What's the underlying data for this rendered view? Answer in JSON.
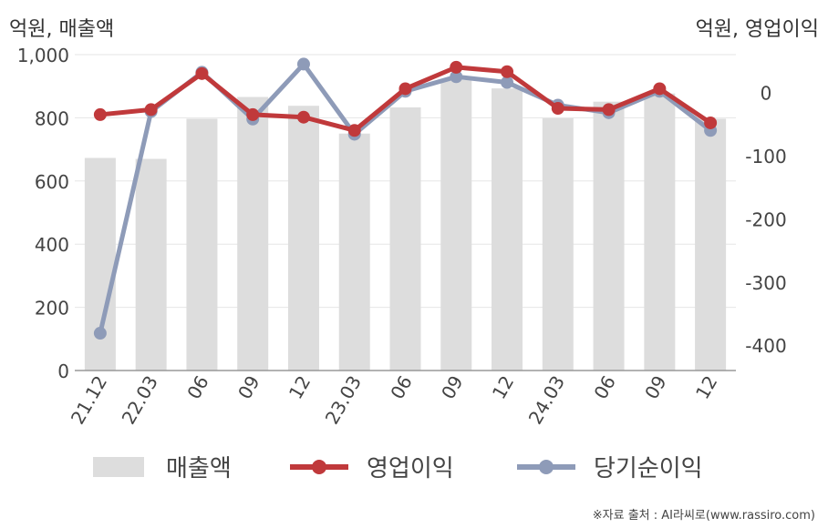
{
  "chart_data": {
    "type": "bar+line",
    "left_axis_label": "억원, 매출액",
    "right_axis_label": "억원, 영업이익",
    "categories": [
      "21.12",
      "22.03",
      "06",
      "09",
      "12",
      "23.03",
      "06",
      "09",
      "12",
      "24.03",
      "06",
      "09",
      "12"
    ],
    "series": [
      {
        "name": "매출액",
        "type": "bar",
        "axis": "left",
        "color": "#dddddd",
        "values": [
          673,
          670,
          797,
          866,
          838,
          750,
          833,
          920,
          893,
          799,
          851,
          877,
          797
        ]
      },
      {
        "name": "영업이익",
        "type": "line",
        "axis": "right",
        "color": "#c0393b",
        "values": [
          -35,
          -27,
          30,
          -35,
          -39,
          -60,
          6,
          40,
          33,
          -25,
          -27,
          6,
          -48
        ]
      },
      {
        "name": "당기순이익",
        "type": "line",
        "axis": "right",
        "color": "#8e9bb8",
        "values": [
          -381,
          -30,
          32,
          -42,
          45,
          -66,
          2,
          25,
          16,
          -20,
          -32,
          2,
          -60
        ]
      }
    ],
    "left_axis": {
      "min": 0,
      "max": 1000,
      "ticks": [
        "0",
        "200",
        "400",
        "600",
        "800",
        "1,000"
      ]
    },
    "right_axis": {
      "min": -440,
      "max": 60,
      "ticks": [
        "-400",
        "-300",
        "-200",
        "-100",
        "0"
      ]
    },
    "grid": true,
    "legend_position": "bottom"
  },
  "source": "※자료 출처 : AI라씨로(www.rassiro.com)"
}
